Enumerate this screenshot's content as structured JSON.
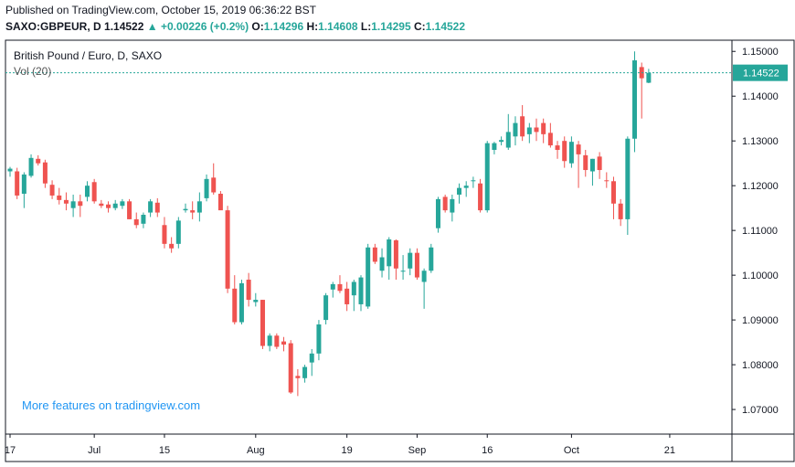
{
  "header": {
    "published": "Published on TradingView.com, October 15, 2019 06:36:22 BST",
    "symbol": "SAXO:GBPEUR, D",
    "last": "1.14522",
    "change": "+0.00226 (+0.2%)",
    "o_label": "O:",
    "o_value": "1.14296",
    "h_label": "H:",
    "h_value": "1.14608",
    "l_label": "L:",
    "l_value": "1.14295",
    "c_label": "C:",
    "c_value": "1.14522"
  },
  "legend": {
    "title": "British Pound / Euro, D, SAXO",
    "volume": "Vol (20)"
  },
  "watermark": "More features on tradingview.com",
  "last_price_label": "1.14522",
  "colors": {
    "up": "#26a69a",
    "down": "#ef5350",
    "last_line": "#26a69a",
    "axis": "#131722"
  },
  "chart_data": {
    "type": "candlestick",
    "title": "British Pound / Euro, D, SAXO",
    "ylim": [
      1.0645,
      1.1525
    ],
    "y_ticks": [
      "1.15000",
      "1.14000",
      "1.13000",
      "1.12000",
      "1.11000",
      "1.10000",
      "1.09000",
      "1.08000",
      "1.07000"
    ],
    "x_ticks": [
      {
        "label": "17",
        "index": 0
      },
      {
        "label": "Jul",
        "index": 12
      },
      {
        "label": "15",
        "index": 22
      },
      {
        "label": "Aug",
        "index": 35
      },
      {
        "label": "19",
        "index": 48
      },
      {
        "label": "Sep",
        "index": 58
      },
      {
        "label": "16",
        "index": 68
      },
      {
        "label": "Oct",
        "index": 80
      },
      {
        "label": "21",
        "index": 94
      }
    ],
    "last_price": 1.14522,
    "candles": [
      {
        "o": 1.1232,
        "h": 1.1242,
        "l": 1.122,
        "c": 1.1238
      },
      {
        "o": 1.1232,
        "h": 1.124,
        "l": 1.117,
        "c": 1.1178
      },
      {
        "o": 1.1182,
        "h": 1.123,
        "l": 1.115,
        "c": 1.1225
      },
      {
        "o": 1.1222,
        "h": 1.127,
        "l": 1.1218,
        "c": 1.1262
      },
      {
        "o": 1.126,
        "h": 1.1268,
        "l": 1.1245,
        "c": 1.125
      },
      {
        "o": 1.1252,
        "h": 1.1258,
        "l": 1.1195,
        "c": 1.1205
      },
      {
        "o": 1.1202,
        "h": 1.1212,
        "l": 1.117,
        "c": 1.1178
      },
      {
        "o": 1.1178,
        "h": 1.1195,
        "l": 1.1158,
        "c": 1.1168
      },
      {
        "o": 1.1168,
        "h": 1.1185,
        "l": 1.1145,
        "c": 1.116
      },
      {
        "o": 1.115,
        "h": 1.118,
        "l": 1.113,
        "c": 1.1165
      },
      {
        "o": 1.1165,
        "h": 1.118,
        "l": 1.113,
        "c": 1.1155
      },
      {
        "o": 1.1175,
        "h": 1.121,
        "l": 1.1165,
        "c": 1.12
      },
      {
        "o": 1.1208,
        "h": 1.1215,
        "l": 1.116,
        "c": 1.1165
      },
      {
        "o": 1.116,
        "h": 1.1168,
        "l": 1.115,
        "c": 1.1155
      },
      {
        "o": 1.1158,
        "h": 1.1165,
        "l": 1.114,
        "c": 1.115
      },
      {
        "o": 1.115,
        "h": 1.1168,
        "l": 1.1145,
        "c": 1.116
      },
      {
        "o": 1.1155,
        "h": 1.117,
        "l": 1.1148,
        "c": 1.1165
      },
      {
        "o": 1.1165,
        "h": 1.117,
        "l": 1.1125,
        "c": 1.1125
      },
      {
        "o": 1.1125,
        "h": 1.114,
        "l": 1.1105,
        "c": 1.1112
      },
      {
        "o": 1.1115,
        "h": 1.114,
        "l": 1.1105,
        "c": 1.1135
      },
      {
        "o": 1.114,
        "h": 1.117,
        "l": 1.113,
        "c": 1.1165
      },
      {
        "o": 1.1162,
        "h": 1.1172,
        "l": 1.113,
        "c": 1.114
      },
      {
        "o": 1.1112,
        "h": 1.113,
        "l": 1.106,
        "c": 1.107
      },
      {
        "o": 1.107,
        "h": 1.1085,
        "l": 1.105,
        "c": 1.106
      },
      {
        "o": 1.107,
        "h": 1.113,
        "l": 1.106,
        "c": 1.1122
      },
      {
        "o": 1.1145,
        "h": 1.116,
        "l": 1.114,
        "c": 1.1148
      },
      {
        "o": 1.1145,
        "h": 1.1165,
        "l": 1.1125,
        "c": 1.114
      },
      {
        "o": 1.114,
        "h": 1.1185,
        "l": 1.112,
        "c": 1.1165
      },
      {
        "o": 1.1172,
        "h": 1.1225,
        "l": 1.1165,
        "c": 1.1215
      },
      {
        "o": 1.1218,
        "h": 1.125,
        "l": 1.118,
        "c": 1.1185
      },
      {
        "o": 1.1182,
        "h": 1.1188,
        "l": 1.115,
        "c": 1.1145
      },
      {
        "o": 1.1145,
        "h": 1.1155,
        "l": 1.096,
        "c": 1.097
      },
      {
        "o": 1.097,
        "h": 1.1,
        "l": 1.089,
        "c": 1.0895
      },
      {
        "o": 1.0895,
        "h": 1.099,
        "l": 1.089,
        "c": 1.0982
      },
      {
        "o": 1.099,
        "h": 1.1005,
        "l": 1.093,
        "c": 1.0945
      },
      {
        "o": 1.094,
        "h": 1.096,
        "l": 1.093,
        "c": 1.0945
      },
      {
        "o": 1.0945,
        "h": 1.0945,
        "l": 1.0835,
        "c": 1.0842
      },
      {
        "o": 1.0842,
        "h": 1.087,
        "l": 1.083,
        "c": 1.0865
      },
      {
        "o": 1.0865,
        "h": 1.087,
        "l": 1.0835,
        "c": 1.084
      },
      {
        "o": 1.0852,
        "h": 1.0862,
        "l": 1.083,
        "c": 1.0845
      },
      {
        "o": 1.0848,
        "h": 1.0855,
        "l": 1.0735,
        "c": 1.0738
      },
      {
        "o": 1.0775,
        "h": 1.079,
        "l": 1.073,
        "c": 1.077
      },
      {
        "o": 1.077,
        "h": 1.08,
        "l": 1.076,
        "c": 1.0795
      },
      {
        "o": 1.0805,
        "h": 1.0835,
        "l": 1.0775,
        "c": 1.0825
      },
      {
        "o": 1.0825,
        "h": 1.09,
        "l": 1.081,
        "c": 1.089
      },
      {
        "o": 1.09,
        "h": 1.096,
        "l": 1.089,
        "c": 1.0955
      },
      {
        "o": 1.0968,
        "h": 1.0985,
        "l": 1.095,
        "c": 1.098
      },
      {
        "o": 1.098,
        "h": 1.1,
        "l": 1.096,
        "c": 1.0965
      },
      {
        "o": 1.097,
        "h": 1.0985,
        "l": 1.092,
        "c": 1.0935
      },
      {
        "o": 1.0955,
        "h": 1.099,
        "l": 1.092,
        "c": 1.0985
      },
      {
        "o": 1.0935,
        "h": 1.1,
        "l": 1.092,
        "c": 1.0995
      },
      {
        "o": 1.093,
        "h": 1.107,
        "l": 1.0925,
        "c": 1.1062
      },
      {
        "o": 1.1062,
        "h": 1.107,
        "l": 1.1025,
        "c": 1.103
      },
      {
        "o": 1.101,
        "h": 1.106,
        "l": 1.0995,
        "c": 1.104
      },
      {
        "o": 1.102,
        "h": 1.1085,
        "l": 1.099,
        "c": 1.108
      },
      {
        "o": 1.1078,
        "h": 1.108,
        "l": 1.099,
        "c": 1.1015
      },
      {
        "o": 1.101,
        "h": 1.1045,
        "l": 1.099,
        "c": 1.101
      },
      {
        "o": 1.1015,
        "h": 1.106,
        "l": 1.1,
        "c": 1.105
      },
      {
        "o": 1.105,
        "h": 1.106,
        "l": 1.099,
        "c": 1.0995
      },
      {
        "o": 1.0985,
        "h": 1.1015,
        "l": 1.0925,
        "c": 1.101
      },
      {
        "o": 1.101,
        "h": 1.107,
        "l": 1.1005,
        "c": 1.1062
      },
      {
        "o": 1.1105,
        "h": 1.1175,
        "l": 1.1095,
        "c": 1.117
      },
      {
        "o": 1.1175,
        "h": 1.118,
        "l": 1.114,
        "c": 1.1145
      },
      {
        "o": 1.114,
        "h": 1.118,
        "l": 1.112,
        "c": 1.117
      },
      {
        "o": 1.118,
        "h": 1.1205,
        "l": 1.116,
        "c": 1.1195
      },
      {
        "o": 1.1195,
        "h": 1.121,
        "l": 1.1175,
        "c": 1.12
      },
      {
        "o": 1.121,
        "h": 1.122,
        "l": 1.1195,
        "c": 1.1212
      },
      {
        "o": 1.1205,
        "h": 1.1215,
        "l": 1.114,
        "c": 1.1145
      },
      {
        "o": 1.1145,
        "h": 1.13,
        "l": 1.114,
        "c": 1.1295
      },
      {
        "o": 1.128,
        "h": 1.1298,
        "l": 1.127,
        "c": 1.1295
      },
      {
        "o": 1.1298,
        "h": 1.131,
        "l": 1.129,
        "c": 1.1302
      },
      {
        "o": 1.1285,
        "h": 1.136,
        "l": 1.128,
        "c": 1.132
      },
      {
        "o": 1.131,
        "h": 1.1355,
        "l": 1.129,
        "c": 1.134
      },
      {
        "o": 1.1355,
        "h": 1.138,
        "l": 1.13,
        "c": 1.131
      },
      {
        "o": 1.1315,
        "h": 1.134,
        "l": 1.1295,
        "c": 1.133
      },
      {
        "o": 1.133,
        "h": 1.135,
        "l": 1.13,
        "c": 1.132
      },
      {
        "o": 1.134,
        "h": 1.135,
        "l": 1.1295,
        "c": 1.1315
      },
      {
        "o": 1.1318,
        "h": 1.134,
        "l": 1.1285,
        "c": 1.129
      },
      {
        "o": 1.129,
        "h": 1.13,
        "l": 1.126,
        "c": 1.128
      },
      {
        "o": 1.13,
        "h": 1.131,
        "l": 1.124,
        "c": 1.1255
      },
      {
        "o": 1.125,
        "h": 1.131,
        "l": 1.124,
        "c": 1.1298
      },
      {
        "o": 1.1292,
        "h": 1.13,
        "l": 1.1195,
        "c": 1.127
      },
      {
        "o": 1.1268,
        "h": 1.128,
        "l": 1.122,
        "c": 1.1235
      },
      {
        "o": 1.1232,
        "h": 1.126,
        "l": 1.12,
        "c": 1.126
      },
      {
        "o": 1.1265,
        "h": 1.1275,
        "l": 1.1215,
        "c": 1.1235
      },
      {
        "o": 1.1212,
        "h": 1.123,
        "l": 1.1195,
        "c": 1.121
      },
      {
        "o": 1.121,
        "h": 1.122,
        "l": 1.1125,
        "c": 1.116
      },
      {
        "o": 1.116,
        "h": 1.117,
        "l": 1.111,
        "c": 1.1125
      },
      {
        "o": 1.1125,
        "h": 1.131,
        "l": 1.109,
        "c": 1.1305
      },
      {
        "o": 1.1305,
        "h": 1.15,
        "l": 1.1275,
        "c": 1.148
      },
      {
        "o": 1.1465,
        "h": 1.1475,
        "l": 1.135,
        "c": 1.144
      },
      {
        "o": 1.143,
        "h": 1.1461,
        "l": 1.1429,
        "c": 1.1452
      }
    ]
  }
}
